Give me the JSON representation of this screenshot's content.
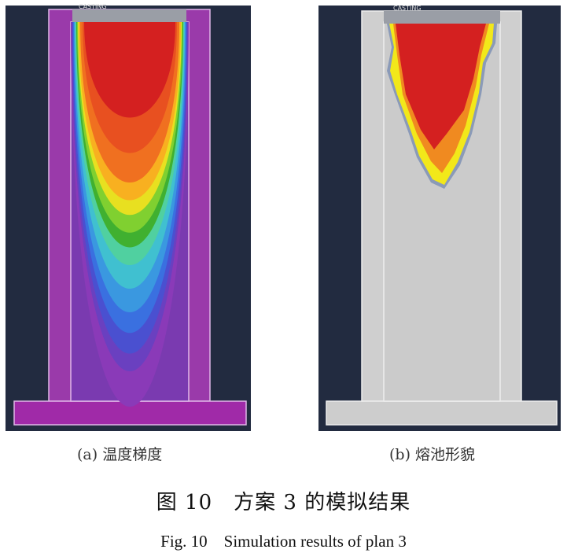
{
  "panels": [
    {
      "label": "(a) 温度梯度",
      "casting_label": "CASTING"
    },
    {
      "label": "(b) 熔池形貌",
      "casting_label": "CASTING"
    }
  ],
  "figure": {
    "title_cn": "图 10　方案 3 的模拟结果",
    "title_en": "Fig. 10　Simulation results of plan 3"
  },
  "colors": {
    "background": "#222b40",
    "mold_a": "#9a2aa8",
    "mold_b": "#cfcfcf",
    "melt": "#d42020"
  }
}
